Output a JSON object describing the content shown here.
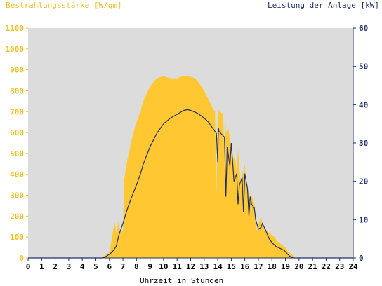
{
  "chart_data": {
    "type": "area",
    "left_axis_title": "Bestrahlungsstärke [W/qm]",
    "right_axis_title": "Leistung der Anlage [kW]",
    "xlabel": "Uhrzeit in Stunden",
    "xlim": [
      0,
      24
    ],
    "x_ticks": [
      "0",
      "1",
      "2",
      "3",
      "4",
      "5",
      "6",
      "7",
      "8",
      "9",
      "10",
      "11",
      "12",
      "13",
      "14",
      "15",
      "16",
      "17",
      "18",
      "19",
      "20",
      "21",
      "22",
      "23",
      "24"
    ],
    "y_left_lim": [
      0,
      1100
    ],
    "y_left_ticks": [
      "0",
      "100",
      "200",
      "300",
      "400",
      "500",
      "600",
      "700",
      "800",
      "900",
      "1000",
      "1100"
    ],
    "y_right_lim": [
      0,
      60
    ],
    "y_right_ticks": [
      "0",
      "10",
      "20",
      "30",
      "40",
      "50",
      "60"
    ],
    "grid": false,
    "colors": {
      "irradiance": "#ffc832",
      "power": "#1f2f6a",
      "plot_background": "#dcdcdc",
      "left_axis": "#f0c020",
      "right_axis": "#1f2f6a"
    },
    "series": [
      {
        "axis": "left",
        "kind": "area",
        "x": [
          0,
          5.3,
          5.6,
          6.0,
          6.3,
          6.4,
          6.5,
          6.7,
          6.8,
          7.0,
          7.1,
          7.2,
          7.3,
          7.5,
          7.7,
          8.0,
          8.3,
          8.5,
          9.0,
          9.5,
          10.0,
          10.5,
          11.0,
          11.2,
          11.4,
          11.6,
          11.8,
          12.0,
          12.3,
          12.6,
          13.0,
          13.3,
          13.6,
          13.8,
          13.9,
          14.0,
          14.05,
          14.1,
          14.4,
          14.5,
          14.55,
          14.6,
          14.8,
          14.9,
          15.0,
          15.1,
          15.3,
          15.4,
          15.5,
          15.7,
          15.8,
          15.9,
          16.0,
          16.1,
          16.2,
          16.3,
          16.5,
          16.7,
          16.8,
          16.9,
          17.0,
          17.2,
          17.3,
          17.5,
          17.8,
          18.0,
          18.2,
          18.4,
          18.6,
          18.8,
          19.0,
          19.2,
          19.4,
          19.6,
          19.7,
          24
        ],
        "values": [
          0,
          0,
          10,
          25,
          140,
          170,
          120,
          180,
          120,
          130,
          380,
          420,
          460,
          520,
          580,
          650,
          700,
          750,
          820,
          860,
          870,
          860,
          860,
          865,
          870,
          872,
          870,
          868,
          860,
          840,
          800,
          760,
          720,
          700,
          300,
          720,
          710,
          700,
          690,
          420,
          680,
          600,
          620,
          560,
          540,
          480,
          470,
          400,
          520,
          350,
          420,
          400,
          450,
          320,
          360,
          290,
          300,
          260,
          160,
          130,
          160,
          200,
          150,
          140,
          120,
          110,
          100,
          80,
          70,
          60,
          50,
          30,
          20,
          10,
          0,
          0
        ]
      },
      {
        "axis": "right",
        "kind": "line",
        "x": [
          0,
          5.5,
          5.8,
          6.0,
          6.2,
          6.5,
          6.7,
          7.0,
          7.3,
          7.6,
          8.0,
          8.3,
          8.5,
          9.0,
          9.5,
          10.0,
          10.5,
          11.0,
          11.5,
          11.8,
          12.0,
          12.5,
          13.0,
          13.3,
          13.5,
          13.7,
          13.9,
          14.0,
          14.05,
          14.1,
          14.5,
          14.6,
          14.7,
          14.9,
          15.0,
          15.2,
          15.4,
          15.5,
          15.6,
          15.8,
          15.9,
          16.0,
          16.2,
          16.3,
          16.4,
          16.5,
          16.7,
          16.8,
          17.0,
          17.2,
          17.3,
          17.5,
          17.8,
          18.0,
          18.3,
          18.6,
          18.9,
          19.1,
          19.3,
          19.5,
          19.6,
          24
        ],
        "values": [
          0,
          0,
          0.5,
          1,
          1.5,
          3,
          6,
          9,
          12.5,
          15.5,
          19,
          22,
          24.5,
          29,
          32.5,
          35,
          36.5,
          37.5,
          38.5,
          38.7,
          38.5,
          37.8,
          36.5,
          35.5,
          34.5,
          33.5,
          32.5,
          25,
          34,
          33,
          31.5,
          16,
          29,
          24,
          30,
          20,
          22,
          14,
          19,
          21,
          12,
          22,
          18,
          11,
          16,
          14,
          13,
          10,
          7.5,
          8,
          9,
          7.5,
          5,
          4,
          3,
          2.5,
          2,
          1.2,
          0.5,
          0.1,
          0,
          0
        ]
      }
    ]
  }
}
